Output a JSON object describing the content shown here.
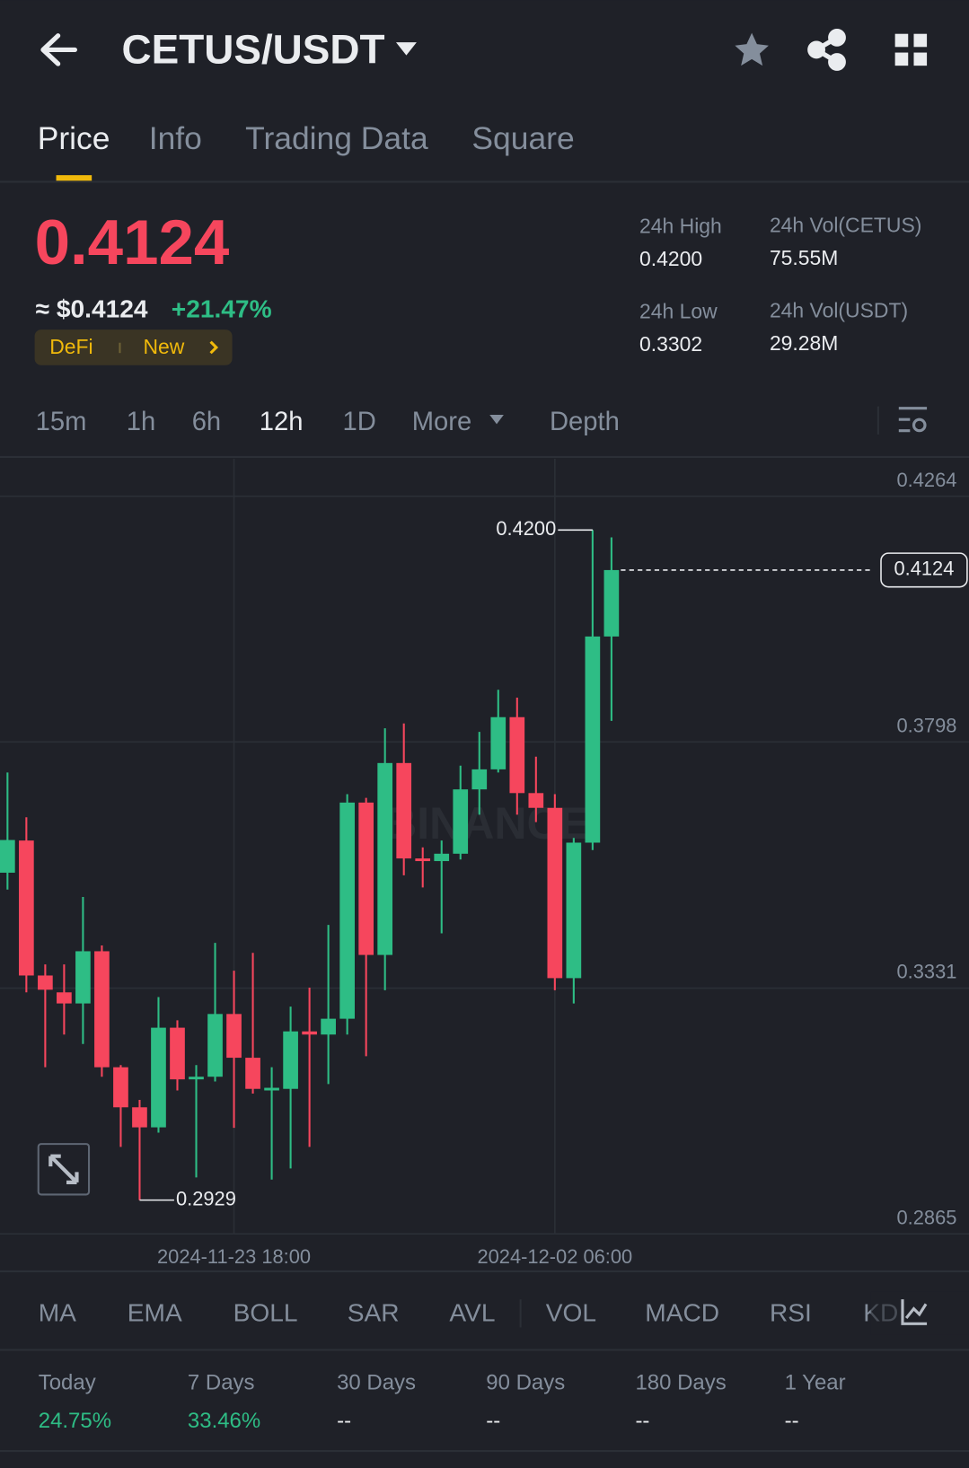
{
  "header": {
    "title": "CETUS/USDT"
  },
  "tabs": [
    "Price",
    "Info",
    "Trading Data",
    "Square"
  ],
  "price": {
    "last": "0.4124",
    "approx": "≈ $0.4124",
    "change": "+21.47%",
    "tags": [
      "DeFi",
      "New"
    ]
  },
  "stats": [
    {
      "label": "24h High",
      "value": "0.4200"
    },
    {
      "label": "24h Vol(CETUS)",
      "value": "75.55M"
    },
    {
      "label": "24h Low",
      "value": "0.3302"
    },
    {
      "label": "24h Vol(USDT)",
      "value": "29.28M"
    }
  ],
  "intervals": [
    "15m",
    "1h",
    "6h",
    "12h",
    "1D",
    "More",
    "Depth"
  ],
  "watermark": "BINANCE",
  "chart_data": {
    "type": "candlestick",
    "categories": [
      null,
      null,
      null,
      null,
      null,
      null,
      null,
      null,
      null,
      null,
      null,
      null,
      "2024-11-23 18:00",
      null,
      null,
      null,
      null,
      null,
      null,
      null,
      null,
      null,
      null,
      null,
      null,
      null,
      null,
      null,
      null,
      "2024-12-02 06:00",
      null,
      null,
      null
    ],
    "open": [
      0.355,
      0.3611,
      0.3355,
      0.3323,
      0.3302,
      0.3401,
      0.3181,
      0.3105,
      0.3067,
      0.3256,
      0.3158,
      0.3163,
      0.3282,
      0.3199,
      0.3137,
      0.314,
      0.3249,
      0.3243,
      0.3273,
      0.3683,
      0.3394,
      0.3758,
      0.3577,
      0.3572,
      0.3586,
      0.3708,
      0.3746,
      0.3845,
      0.3701,
      0.3673,
      0.335,
      0.3607,
      0.3998
    ],
    "high": [
      0.374,
      0.3655,
      0.3376,
      0.3376,
      0.3504,
      0.3412,
      0.3185,
      0.3119,
      0.3314,
      0.327,
      0.3185,
      0.3417,
      0.3364,
      0.3398,
      0.3181,
      0.3296,
      0.3332,
      0.3451,
      0.3699,
      0.3692,
      0.3824,
      0.3833,
      0.3598,
      0.3611,
      0.3753,
      0.3817,
      0.3897,
      0.3882,
      0.377,
      0.3699,
      0.3616,
      0.42,
      0.4186
    ],
    "low": [
      0.3518,
      0.3323,
      0.3181,
      0.3243,
      0.3225,
      0.3163,
      0.303,
      0.2929,
      0.3057,
      0.3137,
      0.2972,
      0.3154,
      0.3066,
      0.3131,
      0.2968,
      0.2989,
      0.303,
      0.3149,
      0.3243,
      0.3202,
      0.3327,
      0.3545,
      0.3522,
      0.3435,
      0.3575,
      0.366,
      0.374,
      0.366,
      0.3646,
      0.3327,
      0.3302,
      0.3593,
      0.3838
    ],
    "close": [
      0.3612,
      0.3355,
      0.3328,
      0.3302,
      0.3401,
      0.3181,
      0.3105,
      0.3067,
      0.3256,
      0.3158,
      0.3163,
      0.3282,
      0.3199,
      0.314,
      0.3142,
      0.3249,
      0.3243,
      0.3273,
      0.3683,
      0.3394,
      0.3758,
      0.3577,
      0.3572,
      0.3586,
      0.3708,
      0.3746,
      0.3845,
      0.3701,
      0.3673,
      0.335,
      0.3607,
      0.3998,
      0.4124
    ],
    "up_color": "#2ebd85",
    "down_color": "#f6465d",
    "ylim": [
      0.2865,
      0.4264
    ],
    "yticks": [
      0.4264,
      0.3798,
      0.3331,
      0.2865
    ],
    "grid": true,
    "high_label": "0.4200",
    "low_label": "0.2929",
    "last_label": "0.4124"
  },
  "indicators": [
    "MA",
    "EMA",
    "BOLL",
    "SAR",
    "AVL",
    "VOL",
    "MACD",
    "RSI",
    "KD"
  ],
  "performance": [
    {
      "label": "Today",
      "value": "24.75%"
    },
    {
      "label": "7 Days",
      "value": "33.46%"
    },
    {
      "label": "30 Days",
      "value": "--"
    },
    {
      "label": "90 Days",
      "value": "--"
    },
    {
      "label": "180 Days",
      "value": "--"
    },
    {
      "label": "1 Year",
      "value": "--"
    }
  ]
}
